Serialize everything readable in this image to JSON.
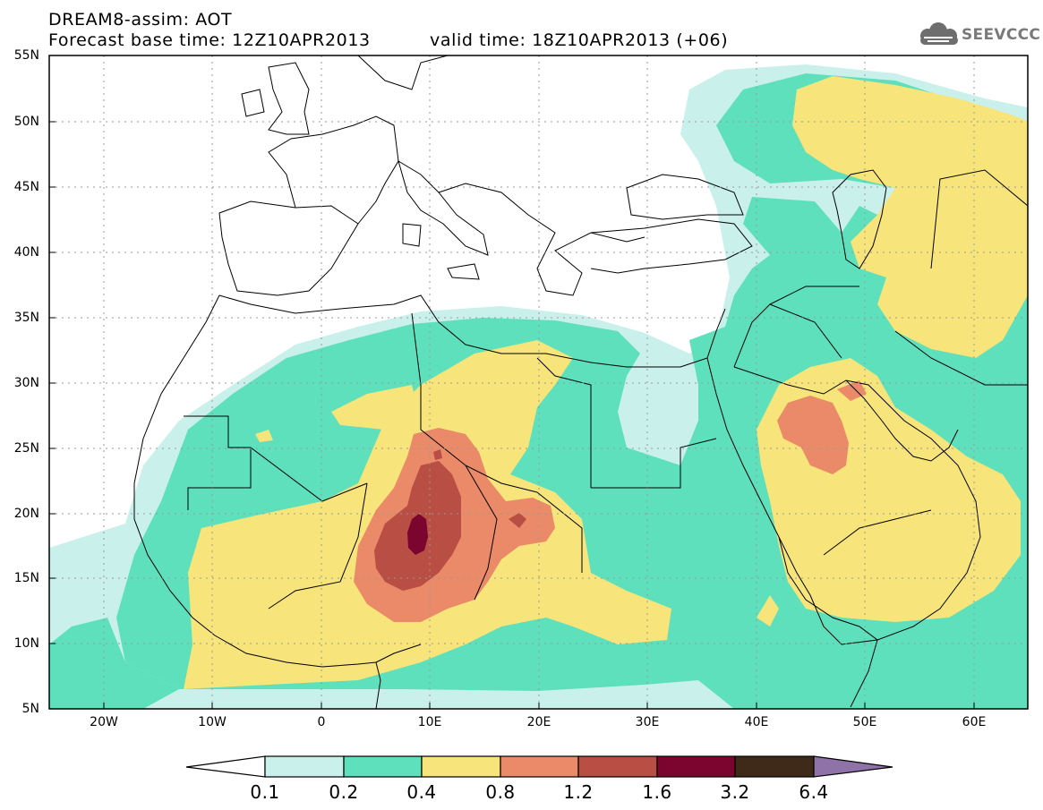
{
  "header": {
    "line1": "DREAM8-assim: AOT",
    "line2": "Forecast base time: 12Z10APR2013",
    "valid": "valid time: 18Z10APR2013 (+06)"
  },
  "logo": {
    "text": "SEEVCCC",
    "icon": "cloud-logo-icon"
  },
  "map": {
    "lat_labels": [
      "55N",
      "50N",
      "45N",
      "40N",
      "35N",
      "30N",
      "25N",
      "20N",
      "15N",
      "10N",
      "5N"
    ],
    "lon_labels": [
      "20W",
      "10W",
      "0",
      "10E",
      "20E",
      "30E",
      "40E",
      "50E",
      "60E"
    ],
    "lat_range": [
      5,
      55
    ],
    "lon_range": [
      -25,
      65
    ],
    "grid": "dotted",
    "projection": "lat-lon"
  },
  "colorbar": {
    "thresholds": [
      "0.1",
      "0.2",
      "0.4",
      "0.8",
      "1.2",
      "1.6",
      "3.2",
      "6.4"
    ],
    "colors": [
      "#ffffff",
      "#c9f0ea",
      "#5de0bb",
      "#f7e47a",
      "#ea8a68",
      "#b94e44",
      "#7c0530",
      "#3f2918",
      "#8e72a8"
    ]
  },
  "colors": {
    "c1": "#c9f0ea",
    "c2": "#5de0bb",
    "c3": "#f7e47a",
    "c4": "#ea8a68",
    "c5": "#b94e44",
    "c6": "#7c0530"
  }
}
